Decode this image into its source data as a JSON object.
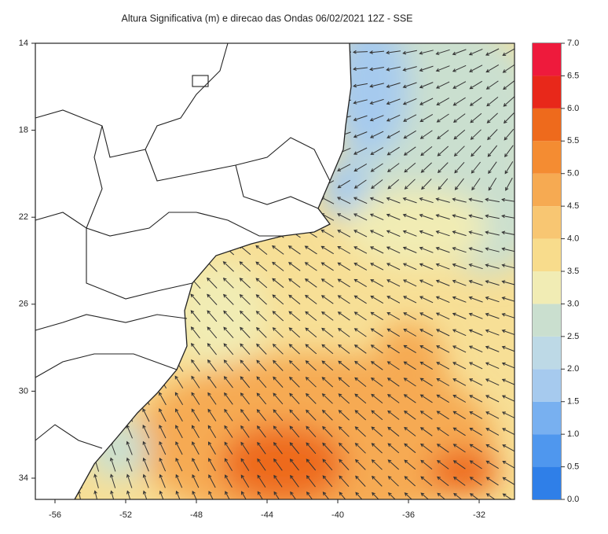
{
  "map": {
    "title": "Altura Significativa (m) e direcao das Ondas 06/02/2021 12Z - SSE",
    "yticks": [
      14,
      18,
      22,
      26,
      30,
      34
    ],
    "xticks": [
      -56,
      -52,
      -48,
      -44,
      -40,
      -36,
      -32
    ],
    "colorbar": {
      "ticks": [
        {
          "value": 0,
          "label": "0.0"
        },
        {
          "value": 0.5,
          "label": "0.5"
        },
        {
          "value": 1,
          "label": "1.0"
        },
        {
          "value": 1.5,
          "label": "1.5"
        },
        {
          "value": 2,
          "label": "2.0"
        },
        {
          "value": 2.5,
          "label": "2.5"
        },
        {
          "value": 3,
          "label": "3.0"
        },
        {
          "value": 3.5,
          "label": "3.5"
        },
        {
          "value": 4,
          "label": "4.0"
        },
        {
          "value": 4.5,
          "label": "4.5"
        },
        {
          "value": 5,
          "label": "5.0"
        },
        {
          "value": 5.5,
          "label": "5.5"
        },
        {
          "value": 6,
          "label": "6.0"
        },
        {
          "value": 6.5,
          "label": "6.5"
        },
        {
          "value": 7,
          "label": "7.0"
        }
      ],
      "colors": [
        "#2f7fe8",
        "#4f97ee",
        "#78b0f0",
        "#a6caee",
        "#bdd9e6",
        "#cadfcf",
        "#f1ecb4",
        "#f8dc8c",
        "#f8c672",
        "#f6aa52",
        "#f48c32",
        "#ee6a1c",
        "#e8281a",
        "#ee1a3c"
      ]
    }
  }
}
